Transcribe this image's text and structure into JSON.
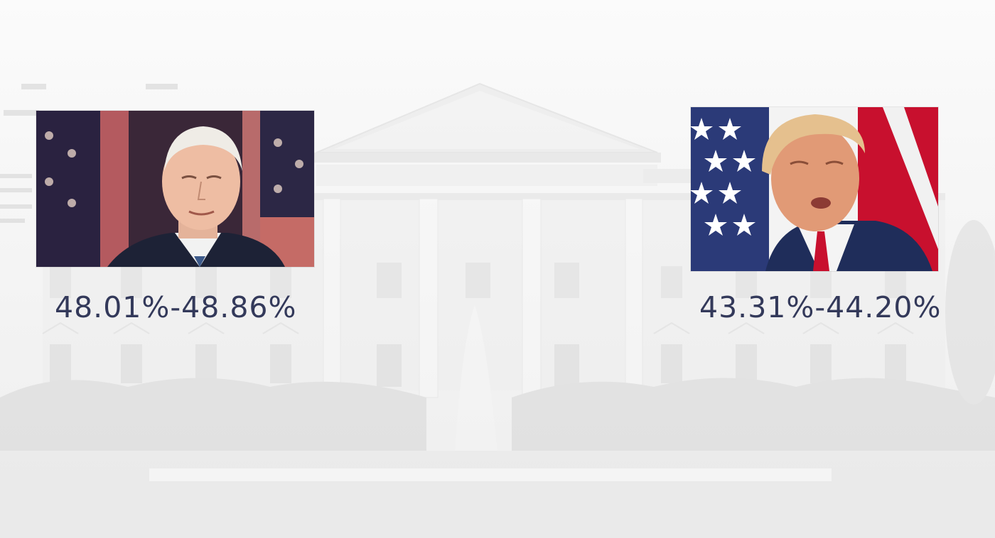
{
  "candidates": [
    {
      "range": "48.01%-48.86%",
      "photo": "portrait-photo"
    },
    {
      "range": "43.31%-44.20%",
      "photo": "portrait-photo"
    }
  ],
  "background": {
    "scene": "white-house-building",
    "tint": "#f3f3f3"
  },
  "colors": {
    "range_text": "#33395a",
    "flag_red": "#c8102e",
    "flag_blue": "#1f2d5a"
  }
}
